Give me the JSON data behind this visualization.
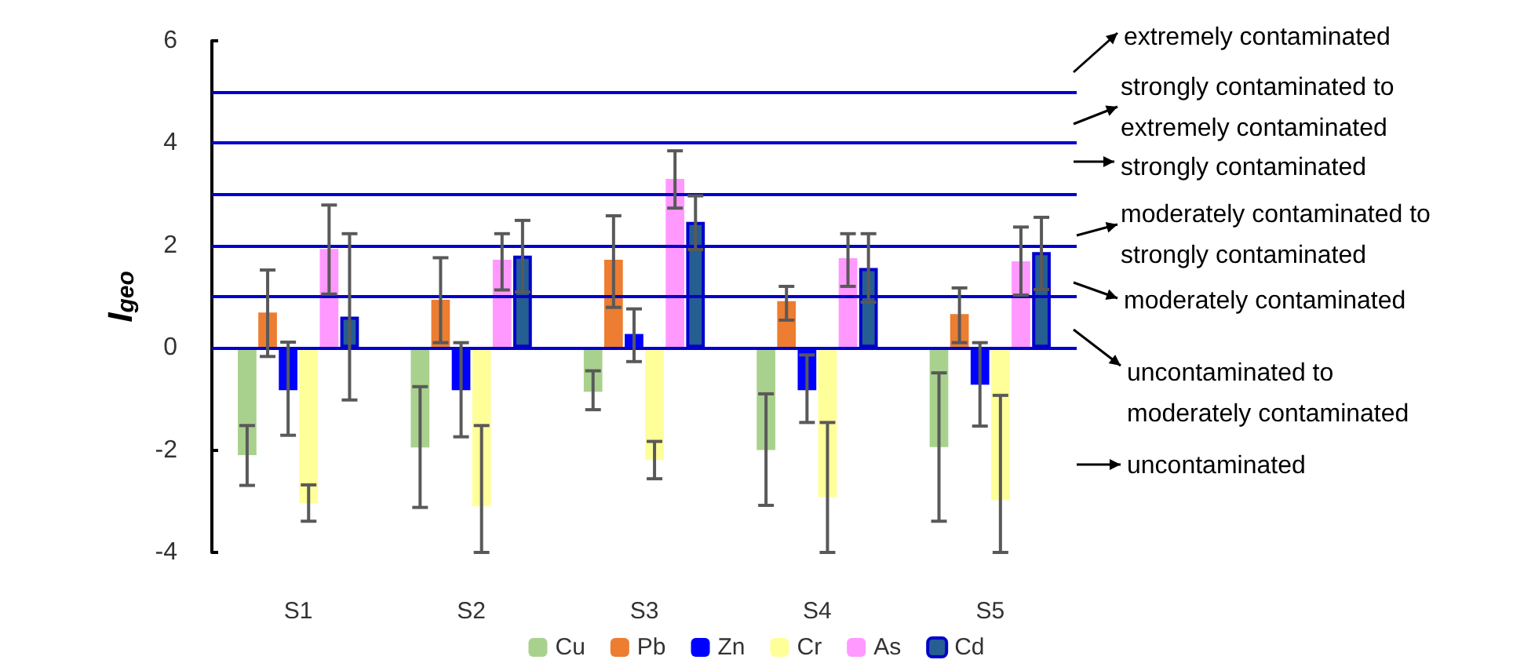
{
  "chart_data": {
    "type": "bar",
    "ylabel": "I$_{geo}$",
    "categories": [
      "S1",
      "S2",
      "S3",
      "S4",
      "S5"
    ],
    "ylim": [
      -4,
      6
    ],
    "yticks": [
      -4,
      -2,
      0,
      2,
      4,
      6
    ],
    "grid": false,
    "legend": "bottom",
    "series": [
      {
        "name": "Cu",
        "color": "#a9d18e",
        "values": [
          -2.1,
          -1.95,
          -0.86,
          -2.0,
          -1.94
        ],
        "errors": [
          [
            -2.69,
            -1.52
          ],
          [
            -3.12,
            -0.76
          ],
          [
            -1.21,
            -0.45
          ],
          [
            -3.08,
            -0.9
          ],
          [
            -3.39,
            -0.49
          ]
        ]
      },
      {
        "name": "Pb",
        "color": "#ed7d31",
        "values": [
          0.69,
          0.94,
          1.72,
          0.91,
          0.66
        ],
        "errors": [
          [
            -0.17,
            1.52
          ],
          [
            0.1,
            1.76
          ],
          [
            0.79,
            2.58
          ],
          [
            0.54,
            1.2
          ],
          [
            0.1,
            1.17
          ]
        ]
      },
      {
        "name": "Zn",
        "color": "#0000ff",
        "values": [
          -0.83,
          -0.83,
          0.27,
          -0.83,
          -0.72
        ],
        "errors": [
          [
            -1.71,
            0.11
          ],
          [
            -1.74,
            0.1
          ],
          [
            -0.27,
            0.76
          ],
          [
            -1.46,
            -0.14
          ],
          [
            -1.53,
            0.1
          ]
        ]
      },
      {
        "name": "Cr",
        "color": "#ffff99",
        "values": [
          -3.04,
          -3.1,
          -2.19,
          -2.92,
          -2.98
        ],
        "errors": [
          [
            -3.39,
            -2.68
          ],
          [
            -4,
            -1.52
          ],
          [
            -2.56,
            -1.83
          ],
          [
            -4,
            -1.46
          ],
          [
            -4,
            -0.93
          ]
        ]
      },
      {
        "name": "As",
        "color": "#ff99ff",
        "values": [
          1.93,
          1.72,
          3.3,
          1.75,
          1.69
        ],
        "errors": [
          [
            1.05,
            2.79
          ],
          [
            1.13,
            2.23
          ],
          [
            2.73,
            3.85
          ],
          [
            1.2,
            2.23
          ],
          [
            1.03,
            2.36
          ]
        ]
      },
      {
        "name": "Cd",
        "color": "#255e91",
        "values": [
          0.61,
          1.8,
          2.46,
          1.56,
          1.87
        ],
        "errors": [
          [
            -1.02,
            2.23
          ],
          [
            1.09,
            2.49
          ],
          [
            1.92,
            2.97
          ],
          [
            0.89,
            2.23
          ],
          [
            1.14,
            2.55
          ]
        ]
      }
    ],
    "ref_lines": [
      {
        "axis": "y",
        "value": 0,
        "color": "#0000cc"
      },
      {
        "axis": "y",
        "value": 1,
        "color": "#0000cc"
      },
      {
        "axis": "y",
        "value": 2,
        "color": "#0000cc"
      },
      {
        "axis": "y",
        "value": 3,
        "color": "#0000cc"
      },
      {
        "axis": "y",
        "value": 4,
        "color": "#0000cc"
      },
      {
        "axis": "y",
        "value": 5,
        "color": "#0000cc"
      }
    ],
    "annotations": [
      "extremely contaminated",
      "strongly contaminated to extremely contaminated",
      "strongly contaminated",
      "moderately contaminated to strongly contaminated",
      "moderately contaminated",
      "uncontaminated to moderately contaminated",
      "uncontaminated"
    ]
  }
}
